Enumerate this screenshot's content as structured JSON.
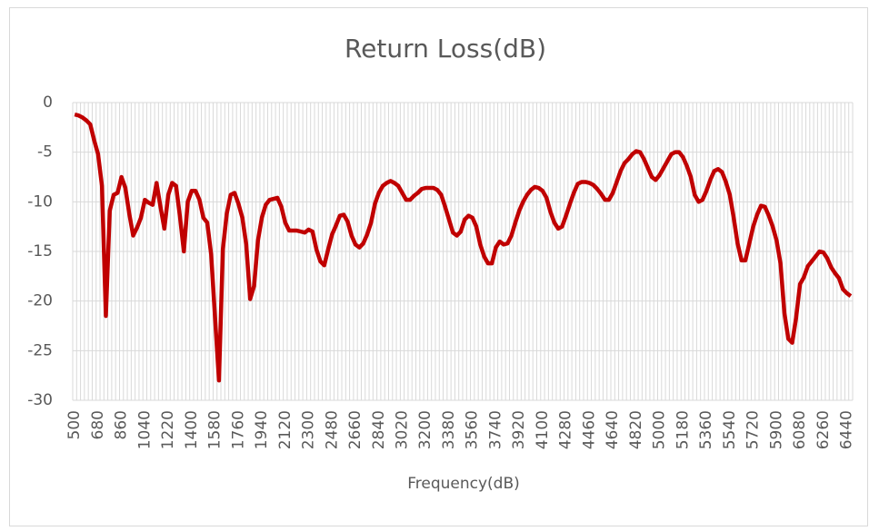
{
  "chart_data": {
    "type": "line",
    "title": "Return Loss(dB)",
    "x_label": "Frequency(dB)",
    "categories": [
      500,
      null,
      null,
      null,
      null,
      null,
      680,
      null,
      null,
      null,
      null,
      null,
      860,
      null,
      null,
      null,
      null,
      null,
      1040,
      null,
      null,
      null,
      null,
      null,
      1220,
      null,
      null,
      null,
      null,
      null,
      1400,
      null,
      null,
      null,
      null,
      null,
      1580,
      null,
      null,
      null,
      null,
      null,
      1760,
      null,
      null,
      null,
      null,
      null,
      1940,
      null,
      null,
      null,
      null,
      null,
      2120,
      null,
      null,
      null,
      null,
      null,
      2300,
      null,
      null,
      null,
      null,
      null,
      2480,
      null,
      null,
      null,
      null,
      null,
      2660,
      null,
      null,
      null,
      null,
      null,
      2840,
      null,
      null,
      null,
      null,
      null,
      3020,
      null,
      null,
      null,
      null,
      null,
      3200,
      null,
      null,
      null,
      null,
      null,
      3380,
      null,
      null,
      null,
      null,
      null,
      3560,
      null,
      null,
      null,
      null,
      null,
      3740,
      null,
      null,
      null,
      null,
      null,
      3920,
      null,
      null,
      null,
      null,
      null,
      4100,
      null,
      null,
      null,
      null,
      null,
      4280,
      null,
      null,
      null,
      null,
      null,
      4460,
      null,
      null,
      null,
      null,
      null,
      4640,
      null,
      null,
      null,
      null,
      null,
      4820,
      null,
      null,
      null,
      null,
      null,
      5000,
      null,
      null,
      null,
      null,
      null,
      5180,
      null,
      null,
      null,
      null,
      null,
      5360,
      null,
      null,
      null,
      null,
      null,
      5540,
      null,
      null,
      null,
      null,
      null,
      5720,
      null,
      null,
      null,
      null,
      null,
      5900,
      null,
      null,
      null,
      null,
      null,
      6080,
      null,
      null,
      null,
      null,
      null,
      6260,
      null,
      null,
      null,
      null,
      null,
      6440,
      null
    ],
    "series": [
      {
        "name": "Return Loss",
        "color": "#c00000",
        "values": [
          -1.2,
          -1.3,
          -1.5,
          -1.8,
          -2.2,
          -3.8,
          -5.2,
          -8.4,
          -21.5,
          -10.9,
          -9.3,
          -9.1,
          -7.5,
          -8.6,
          -11.2,
          -13.4,
          -12.6,
          -11.6,
          -9.8,
          -10.1,
          -10.3,
          -8.1,
          -10.5,
          -12.7,
          -9.3,
          -8.1,
          -8.4,
          -11.5,
          -15.0,
          -10,
          -8.9,
          -8.9,
          -9.8,
          -11.6,
          -12.1,
          -15.3,
          -21.7,
          -28,
          -14.8,
          -11.2,
          -9.3,
          -9.1,
          -10.2,
          -11.6,
          -14.3,
          -19.8,
          -18.5,
          -13.9,
          -11.6,
          -10.3,
          -9.8,
          -9.7,
          -9.6,
          -10.5,
          -12.1,
          -12.9,
          -12.9,
          -12.9,
          -13.0,
          -13.1,
          -12.8,
          -13,
          -14.8,
          -16,
          -16.4,
          -14.8,
          -13.3,
          -12.4,
          -11.4,
          -11.3,
          -12,
          -13.4,
          -14.3,
          -14.6,
          -14.2,
          -13.3,
          -12.1,
          -10.2,
          -9.1,
          -8.4,
          -8.1,
          -7.9,
          -8.1,
          -8.4,
          -9.1,
          -9.8,
          -9.8,
          -9.4,
          -9.1,
          -8.7,
          -8.6,
          -8.6,
          -8.6,
          -8.8,
          -9.3,
          -10.5,
          -11.8,
          -13.1,
          -13.4,
          -13,
          -11.8,
          -11.4,
          -11.6,
          -12.5,
          -14.3,
          -15.5,
          -16.2,
          -16.2,
          -14.6,
          -14,
          -14.3,
          -14.2,
          -13.4,
          -12.1,
          -10.9,
          -10,
          -9.3,
          -8.8,
          -8.5,
          -8.6,
          -8.9,
          -9.6,
          -11,
          -12.1,
          -12.7,
          -12.5,
          -11.4,
          -10.2,
          -9.1,
          -8.2,
          -8,
          -8,
          -8.1,
          -8.3,
          -8.7,
          -9.2,
          -9.8,
          -9.8,
          -9.1,
          -8,
          -6.9,
          -6.1,
          -5.7,
          -5.2,
          -4.9,
          -5,
          -5.7,
          -6.6,
          -7.5,
          -7.8,
          -7.3,
          -6.6,
          -5.9,
          -5.2,
          -5,
          -5,
          -5.5,
          -6.4,
          -7.5,
          -9.3,
          -10,
          -9.8,
          -8.9,
          -7.8,
          -6.9,
          -6.7,
          -7,
          -8,
          -9.3,
          -11.6,
          -14.2,
          -15.9,
          -15.9,
          -14.2,
          -12.5,
          -11.3,
          -10.4,
          -10.5,
          -11.4,
          -12.5,
          -13.9,
          -16.2,
          -21.2,
          -23.8,
          -24.2,
          -21.7,
          -18.3,
          -17.6,
          -16.5,
          -16,
          -15.5,
          -15,
          -15.1,
          -15.7,
          -16.6,
          -17.2,
          -17.7,
          -18.8,
          -19.2,
          -19.5
        ]
      }
    ],
    "ylim": [
      -30,
      0
    ],
    "yticks": [
      -30,
      -25,
      -20,
      -15,
      -10,
      -5,
      0
    ],
    "grid": true
  }
}
